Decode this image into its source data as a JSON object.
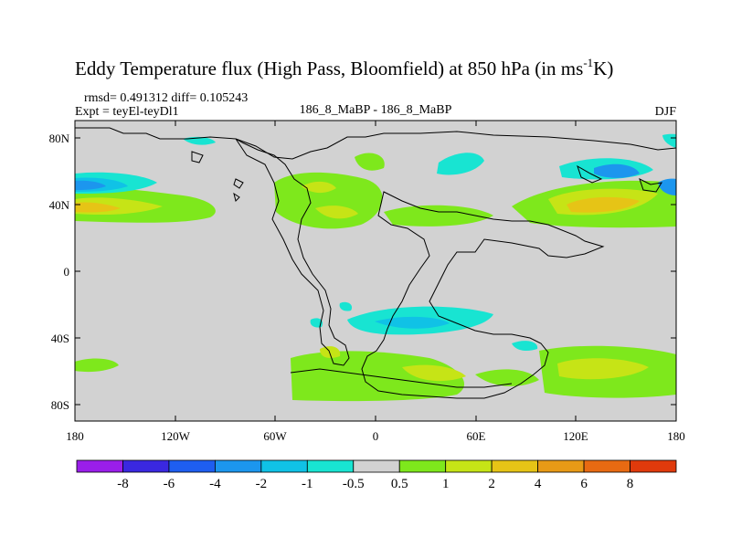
{
  "title_main": "Eddy Temperature flux (High Pass, Bloomfield) at 850 hPa (in ms",
  "title_sup": "-1",
  "title_end": "K)",
  "stats": "rmsd= 0.491312 diff= 0.105243",
  "expt": "Expt = teyEl-teyDl1",
  "case": "186_8_MaBP - 186_8_MaBP",
  "season": "DJF",
  "lat_ticks": [
    "80N",
    "40N",
    "0",
    "40S",
    "80S"
  ],
  "lon_ticks": [
    "180",
    "120W",
    "60W",
    "0",
    "60E",
    "120E",
    "180"
  ],
  "colorbar": {
    "labels": [
      "-8",
      "-6",
      "-4",
      "-2",
      "-1",
      "-0.5",
      "0.5",
      "1",
      "2",
      "4",
      "6",
      "8"
    ],
    "colors": [
      "#9a1eea",
      "#3a28e0",
      "#1e5ef0",
      "#1c96ee",
      "#10c2e6",
      "#18e4d2",
      "#d2d2d2",
      "#7ee81c",
      "#c6e416",
      "#e6c416",
      "#e89a16",
      "#e86a12",
      "#e03a0c"
    ]
  },
  "colors": {
    "neutral": "#d2d2d2",
    "coast": "#000000"
  }
}
